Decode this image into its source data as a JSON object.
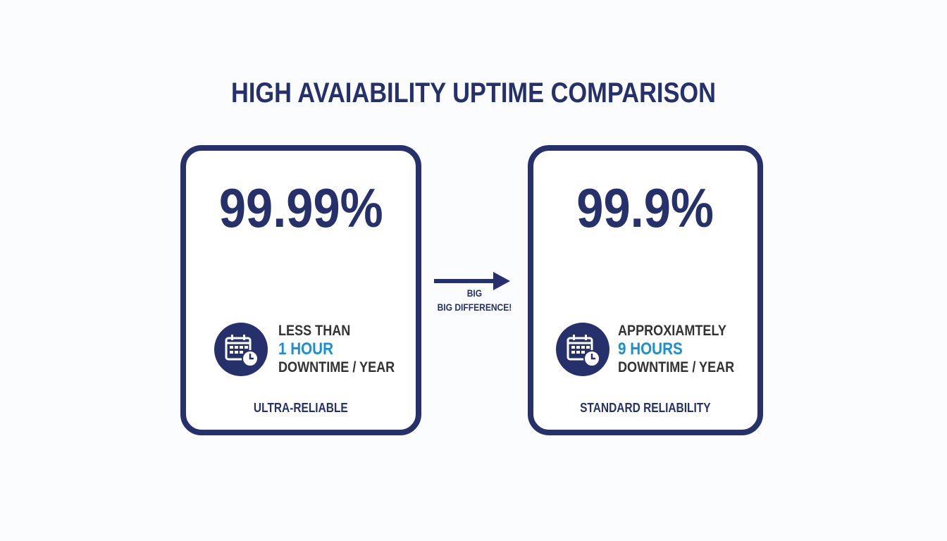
{
  "title": "HIGH AVAIABILITY UPTIME COMPARISON",
  "colors": {
    "navy": "#26306b",
    "accent_blue": "#1b8fd2",
    "text_gray": "#333333"
  },
  "cards": [
    {
      "percent": "99.99%",
      "line1": "LESS THAN",
      "line2": "1 HOUR",
      "line3": "DOWNTIME / YEAR",
      "label": "ULTRA-RELIABLE",
      "icon": "calendar-clock-icon"
    },
    {
      "percent": "99.9%",
      "line1": "APPROXIAMTELY",
      "line2": "9 HOURS",
      "line3": "DOWNTIME / YEAR",
      "label": "STANDARD RELIABILITY",
      "icon": "calendar-clock-icon"
    }
  ],
  "arrow": {
    "line1": "BIG",
    "line2": "BIG DIFFERENCE!",
    "icon": "arrow-right-icon"
  }
}
